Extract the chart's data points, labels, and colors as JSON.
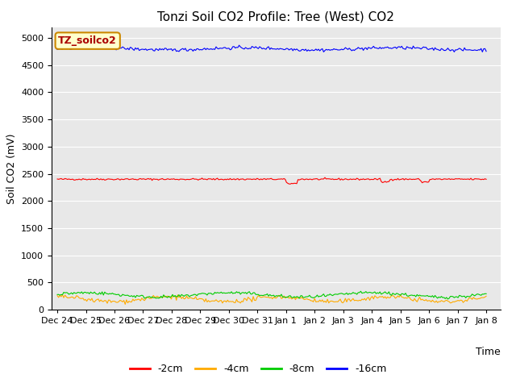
{
  "title": "Tonzi Soil CO2 Profile: Tree (West) CO2",
  "xlabel": "Time",
  "ylabel": "Soil CO2 (mV)",
  "ylim": [
    0,
    5200
  ],
  "yticks": [
    0,
    500,
    1000,
    1500,
    2000,
    2500,
    3000,
    3500,
    4000,
    4500,
    5000
  ],
  "xtick_labels": [
    "Dec 24",
    "Dec 25",
    "Dec 26",
    "Dec 27",
    "Dec 28",
    "Dec 29",
    "Dec 30",
    "Dec 31",
    "Jan 1",
    "Jan 2",
    "Jan 3",
    "Jan 4",
    "Jan 5",
    "Jan 6",
    "Jan 7",
    "Jan 8"
  ],
  "colors": {
    "minus2cm": "#ff0000",
    "minus4cm": "#ffaa00",
    "minus8cm": "#00cc00",
    "minus16cm": "#0000ff"
  },
  "legend_labels": [
    "-2cm",
    "-4cm",
    "-8cm",
    "-16cm"
  ],
  "watermark_text": "TZ_soilco2",
  "watermark_bg": "#ffffcc",
  "watermark_border": "#cc8800",
  "plot_bg": "#e8e8e8",
  "n_points": 336,
  "minus2cm_base": 2400,
  "minus16cm_base": 4800,
  "minus8cm_base": 270,
  "minus4cm_base": 190,
  "title_fontsize": 11,
  "axis_label_fontsize": 9,
  "tick_fontsize": 8,
  "legend_fontsize": 9
}
